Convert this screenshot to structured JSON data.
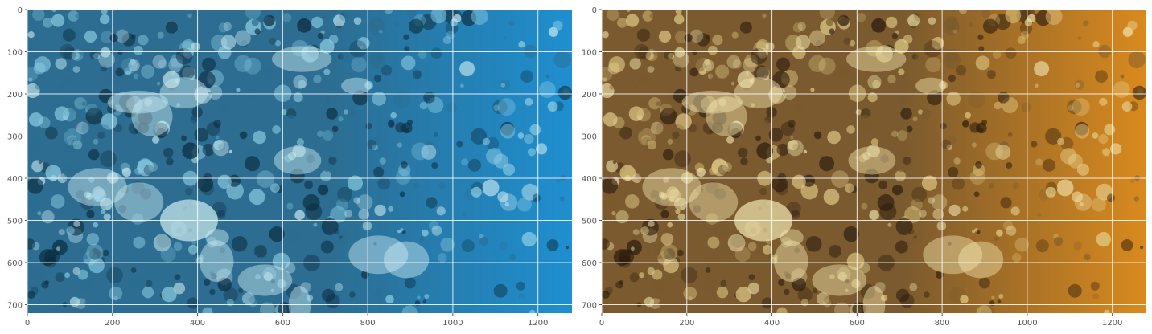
{
  "figure": {
    "panels": [
      {
        "id": "left",
        "description_free": true,
        "tint": "blue",
        "xlim": [
          0,
          1280
        ],
        "ylim": [
          720,
          0
        ],
        "xticks": [
          "0",
          "200",
          "400",
          "600",
          "800",
          "1000",
          "1200"
        ],
        "yticks": [
          "0",
          "100",
          "200",
          "300",
          "400",
          "500",
          "600",
          "700"
        ],
        "grid": true,
        "colors": {
          "base": "#2c6d91",
          "light": "#8fd0e6",
          "dark": "#0b2a3c",
          "accent": "#1f8fd0",
          "highlight": "#cfeef3"
        }
      },
      {
        "id": "right",
        "tint": "warm",
        "xlim": [
          0,
          1280
        ],
        "ylim": [
          720,
          0
        ],
        "xticks": [
          "0",
          "200",
          "400",
          "600",
          "800",
          "1000",
          "1200"
        ],
        "yticks": [
          "0",
          "100",
          "200",
          "300",
          "400",
          "500",
          "600",
          "700"
        ],
        "grid": true,
        "colors": {
          "base": "#7a5a2e",
          "light": "#e6d08a",
          "dark": "#2a1a0e",
          "accent": "#d98a1e",
          "highlight": "#f3e7b0"
        }
      }
    ],
    "style": {
      "axis_background": "#e5e5e5",
      "grid_color": "#ffffff",
      "tick_color": "#555555"
    }
  }
}
